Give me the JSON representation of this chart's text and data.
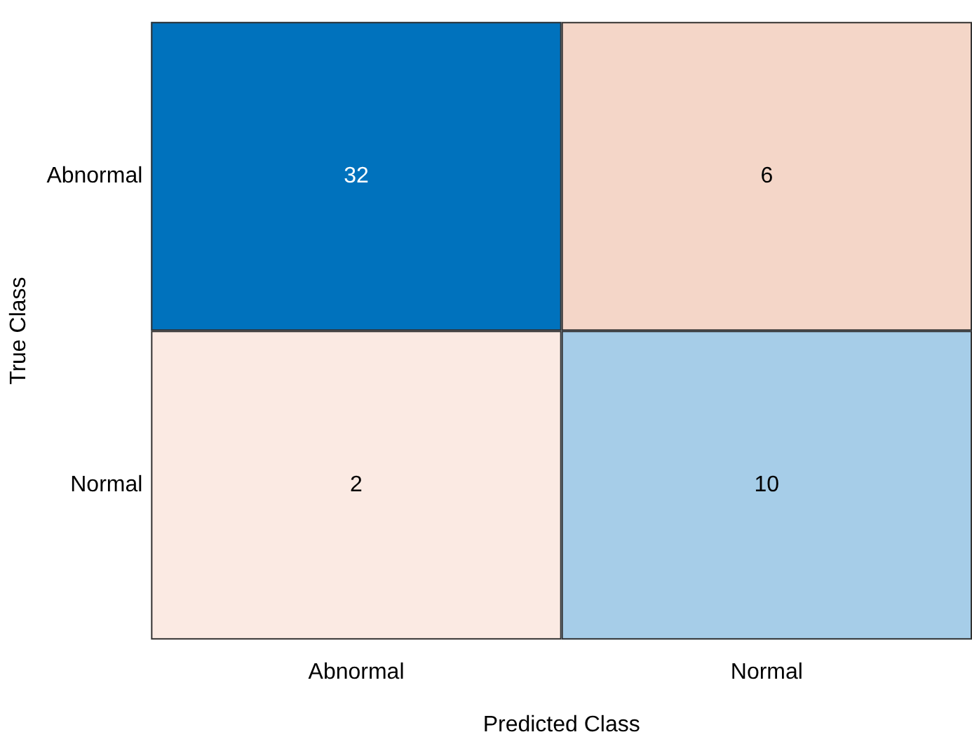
{
  "chart_data": {
    "type": "heatmap",
    "categories": [
      "Abnormal",
      "Normal"
    ],
    "y_categories": [
      "Abnormal",
      "Normal"
    ],
    "cells": [
      [
        32,
        6
      ],
      [
        2,
        10
      ]
    ],
    "colors": [
      [
        "#0072bd",
        "#f4d6c8"
      ],
      [
        "#fbeae3",
        "#a6cde8"
      ]
    ],
    "data_labels": true,
    "xlabel": "Predicted Class",
    "ylabel": "True Class"
  }
}
